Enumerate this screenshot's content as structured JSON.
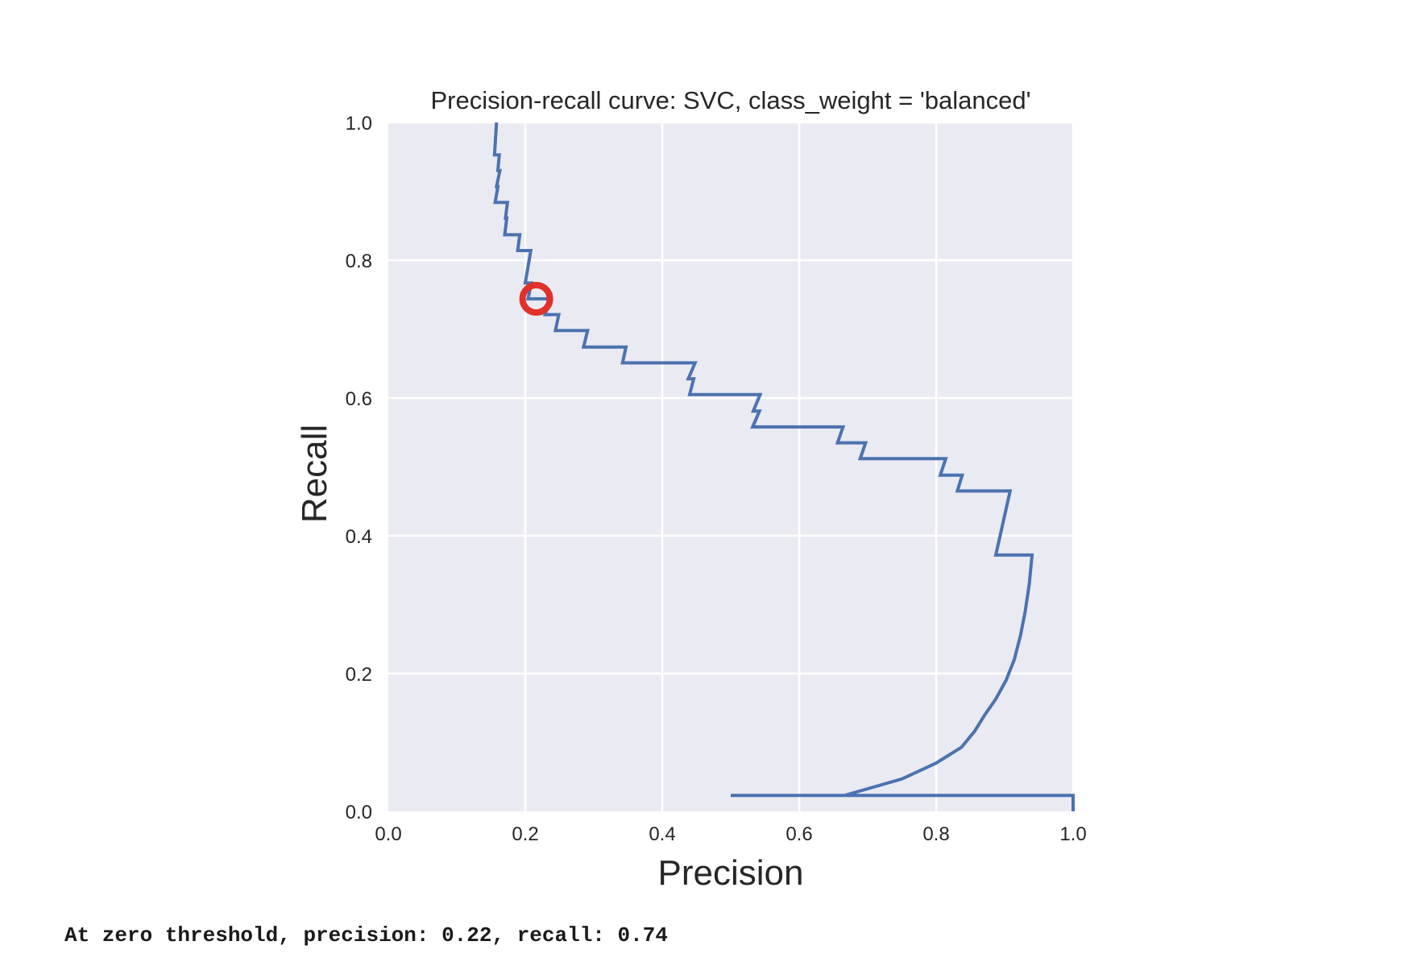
{
  "output_text": "At zero threshold, precision: 0.22, recall: 0.74",
  "chart_data": {
    "type": "line",
    "title": "Precision-recall curve: SVC, class_weight = 'balanced'",
    "xlabel": "Precision",
    "ylabel": "Recall",
    "xlim": [
      0.0,
      1.0
    ],
    "ylim": [
      0.0,
      1.0
    ],
    "xticks": [
      "0.0",
      "0.2",
      "0.4",
      "0.6",
      "0.8",
      "1.0"
    ],
    "yticks": [
      "0.0",
      "0.2",
      "0.4",
      "0.6",
      "0.8",
      "1.0"
    ],
    "grid": true,
    "colors": {
      "line": "#4c72b0",
      "marker": "#e0312b",
      "background": "#eaeaf2",
      "grid": "#ffffff"
    },
    "series": [
      {
        "x": [
          0.158,
          0.155,
          0.162,
          0.16,
          0.163,
          0.158,
          0.16,
          0.156,
          0.174,
          0.171,
          0.173,
          0.17,
          0.192,
          0.189,
          0.208,
          0.2,
          0.209,
          0.204,
          0.236,
          0.229,
          0.249,
          0.244,
          0.291,
          0.285,
          0.347,
          0.342,
          0.448,
          0.438,
          0.446,
          0.44,
          0.543,
          0.533,
          0.542,
          0.532,
          0.664,
          0.656,
          0.697,
          0.689,
          0.814,
          0.806,
          0.838,
          0.831,
          0.908,
          0.887,
          0.94,
          0.936,
          0.93,
          0.923,
          0.914,
          0.902,
          0.887,
          0.871,
          0.856,
          0.837,
          0.8,
          0.75,
          0.666,
          0.5,
          1.0,
          1.0
        ],
        "y": [
          1.0,
          0.953,
          0.953,
          0.93,
          0.93,
          0.907,
          0.907,
          0.884,
          0.884,
          0.861,
          0.861,
          0.837,
          0.837,
          0.814,
          0.814,
          0.767,
          0.767,
          0.744,
          0.744,
          0.721,
          0.721,
          0.698,
          0.698,
          0.674,
          0.674,
          0.651,
          0.651,
          0.628,
          0.628,
          0.605,
          0.605,
          0.581,
          0.581,
          0.558,
          0.558,
          0.535,
          0.535,
          0.512,
          0.512,
          0.488,
          0.488,
          0.465,
          0.465,
          0.372,
          0.372,
          0.33,
          0.29,
          0.255,
          0.22,
          0.19,
          0.163,
          0.14,
          0.116,
          0.093,
          0.07,
          0.047,
          0.023,
          0.023,
          0.023,
          0.0
        ]
      }
    ],
    "marker": {
      "x": 0.216,
      "y": 0.744,
      "shape": "circle"
    }
  }
}
